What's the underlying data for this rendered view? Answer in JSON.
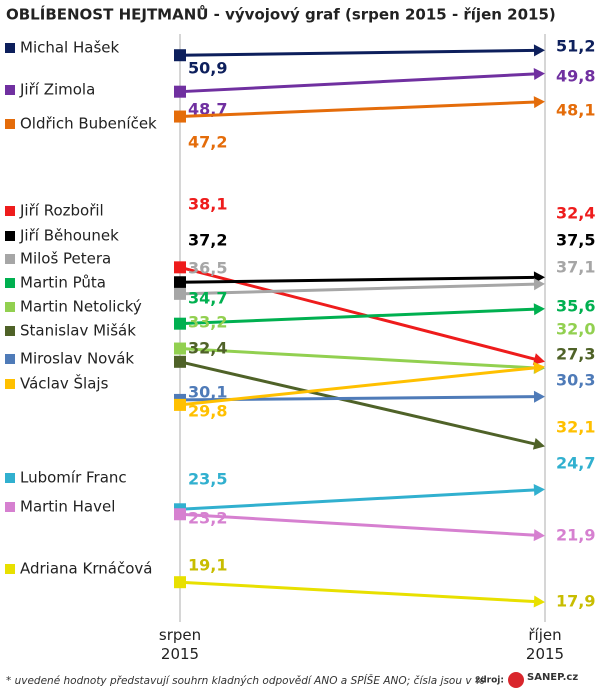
{
  "chart_data": {
    "type": "slope",
    "title": "OBLÍBENOST HEJTMANŮ - vývojový graf (srpen 2015 - říjen 2015)",
    "categories": [
      "srpen 2015",
      "říjen 2015"
    ],
    "ylim": [
      17,
      52
    ],
    "series": [
      {
        "name": "Michal Hašek",
        "color": "#0d1f5c",
        "values": [
          50.9,
          51.2
        ],
        "value_labels": [
          "50,9",
          "51,2"
        ]
      },
      {
        "name": "Jiří Zimola",
        "color": "#7030a0",
        "values": [
          48.7,
          49.8
        ],
        "value_labels": [
          "48,7",
          "49,8"
        ]
      },
      {
        "name": "Oldřich Bubeníček",
        "color": "#e46c0a",
        "values": [
          47.2,
          48.1
        ],
        "value_labels": [
          "47,2",
          "48,1"
        ]
      },
      {
        "name": "Jiří Rozbořil",
        "color": "#ee1c1c",
        "values": [
          38.1,
          32.4
        ],
        "value_labels": [
          "38,1",
          "32,4"
        ]
      },
      {
        "name": "Jiří Běhounek",
        "color": "#000000",
        "values": [
          37.2,
          37.5
        ],
        "value_labels": [
          "37,2",
          "37,5"
        ]
      },
      {
        "name": "Miloš Petera",
        "color": "#a6a6a6",
        "values": [
          36.5,
          37.1
        ],
        "value_labels": [
          "36,5",
          "37,1"
        ]
      },
      {
        "name": "Martin Půta",
        "color": "#00b050",
        "values": [
          34.7,
          35.6
        ],
        "value_labels": [
          "34,7",
          "35,6"
        ]
      },
      {
        "name": "Martin Netolický",
        "color": "#92d050",
        "values": [
          33.2,
          32.0
        ],
        "value_labels": [
          "33,2",
          "32,0"
        ]
      },
      {
        "name": "Stanislav Mišák",
        "color": "#4f6228",
        "values": [
          32.4,
          27.3
        ],
        "value_labels": [
          "32,4",
          "27,3"
        ]
      },
      {
        "name": "Miroslav Novák",
        "color": "#4f7bb8",
        "values": [
          30.1,
          30.3
        ],
        "value_labels": [
          "30,1",
          "30,3"
        ]
      },
      {
        "name": "Václav Šlajs",
        "color": "#ffc000",
        "values": [
          29.8,
          32.1
        ],
        "value_labels": [
          "29,8",
          "32,1"
        ]
      },
      {
        "name": "Lubomír Franc",
        "color": "#31b0cf",
        "values": [
          23.5,
          24.7
        ],
        "value_labels": [
          "23,5",
          "24,7"
        ]
      },
      {
        "name": "Martin Havel",
        "color": "#d680d0",
        "values": [
          23.2,
          21.9
        ],
        "value_labels": [
          "23,2",
          "21,9"
        ]
      },
      {
        "name": "Adriana Krnáčová",
        "color": "#e8e000",
        "values": [
          19.1,
          17.9
        ],
        "value_labels": [
          "19,1",
          "17,9"
        ]
      }
    ],
    "footnote": "* uvedené hodnoty představují souhrn kladných odpovědí ANO a SPÍŠE ANO; čísla jsou v %",
    "source_label": "zdroj:",
    "source": "SANEP.cz"
  }
}
